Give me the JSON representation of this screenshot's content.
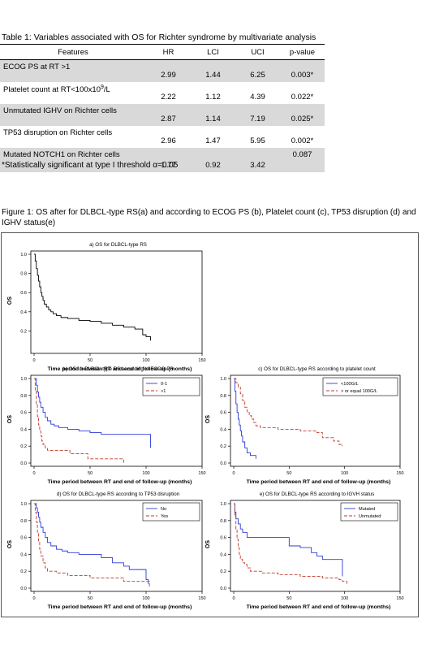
{
  "table": {
    "title": "Table 1: Variables associated with OS for Richter syndrome by multivariate analysis",
    "headers": [
      "Features",
      "HR",
      "LCI",
      "UCI",
      "p-value"
    ],
    "rows": [
      {
        "feature": "ECOG PS at RT >1",
        "hr": "2.99",
        "lci": "1.44",
        "uci": "6.25",
        "p": "0.003*"
      },
      {
        "feature": "Platelet count at RT<100x10",
        "sup": "9",
        "feature_end": "/L",
        "hr": "2.22",
        "lci": "1.12",
        "uci": "4.39",
        "p": "0.022*"
      },
      {
        "feature": "Unmutated IGHV on Richter cells",
        "hr": "2.87",
        "lci": "1.14",
        "uci": "7.19",
        "p": "0.025*"
      },
      {
        "feature": "TP53 disruption on Richter cells",
        "hr": "2.96",
        "lci": "1.47",
        "uci": "5.95",
        "p": "0.002*"
      },
      {
        "feature": "Mutated NOTCH1 on Richter cells",
        "hr": "1.77",
        "lci": "0.92",
        "uci": "3.42",
        "p": "0.087"
      }
    ],
    "footnote": "*Statistically significant at type I threshold α=0.05"
  },
  "figure": {
    "caption": "Figure 1: OS after for DLBCL-type RS(a) and according to ECOG PS (b), Platelet count (c), TP53 disruption (d) and IGHV status(e)"
  },
  "chart_data": [
    {
      "type": "line",
      "title": "a) OS for DLBCL-type RS",
      "xlabel": "Time period between RT and end of follow-up (months)",
      "ylabel": "OS",
      "xlim": [
        0,
        150
      ],
      "ylim": [
        0,
        1.0
      ],
      "xticks": [
        "0",
        "50",
        "100",
        "150"
      ],
      "yticks": [
        "0.2",
        "0.4",
        "0.6",
        "0.8",
        "1.0"
      ],
      "legend": "none",
      "series": [
        {
          "color": "#000000",
          "step": [
            [
              0,
              1.0
            ],
            [
              1,
              0.93
            ],
            [
              2,
              0.85
            ],
            [
              3,
              0.78
            ],
            [
              4,
              0.72
            ],
            [
              5,
              0.66
            ],
            [
              6,
              0.6
            ],
            [
              7,
              0.56
            ],
            [
              8,
              0.52
            ],
            [
              9,
              0.48
            ],
            [
              11,
              0.45
            ],
            [
              13,
              0.42
            ],
            [
              15,
              0.4
            ],
            [
              17,
              0.38
            ],
            [
              20,
              0.36
            ],
            [
              24,
              0.34
            ],
            [
              30,
              0.33
            ],
            [
              40,
              0.31
            ],
            [
              50,
              0.3
            ],
            [
              60,
              0.28
            ],
            [
              70,
              0.26
            ],
            [
              80,
              0.24
            ],
            [
              90,
              0.22
            ],
            [
              97,
              0.16
            ],
            [
              100,
              0.14
            ],
            [
              104,
              0.1
            ]
          ]
        }
      ]
    },
    {
      "type": "line",
      "title": "b) OS for DLBCL-type RS according to ECOG PS",
      "xlabel": "Time period between RT and end of follow-up (months)",
      "ylabel": "OS",
      "xlim": [
        0,
        150
      ],
      "ylim": [
        0,
        1.0
      ],
      "xticks": [
        "0",
        "50",
        "100",
        "150"
      ],
      "yticks": [
        "0.0",
        "0.2",
        "0.4",
        "0.6",
        "0.8",
        "1.0"
      ],
      "legend": "top-right",
      "series": [
        {
          "name": "0-1",
          "color": "#2b3bd6",
          "dashed": false,
          "step": [
            [
              0,
              1.0
            ],
            [
              2,
              0.92
            ],
            [
              3,
              0.84
            ],
            [
              4,
              0.78
            ],
            [
              5,
              0.72
            ],
            [
              6,
              0.66
            ],
            [
              8,
              0.6
            ],
            [
              10,
              0.54
            ],
            [
              12,
              0.5
            ],
            [
              15,
              0.46
            ],
            [
              18,
              0.44
            ],
            [
              22,
              0.42
            ],
            [
              30,
              0.4
            ],
            [
              40,
              0.38
            ],
            [
              50,
              0.36
            ],
            [
              60,
              0.34
            ],
            [
              100,
              0.34
            ],
            [
              104,
              0.18
            ]
          ]
        },
        {
          "name": ">1",
          "color": "#c0392b",
          "dashed": true,
          "step": [
            [
              0,
              1.0
            ],
            [
              1,
              0.85
            ],
            [
              2,
              0.7
            ],
            [
              3,
              0.55
            ],
            [
              4,
              0.45
            ],
            [
              5,
              0.38
            ],
            [
              6,
              0.32
            ],
            [
              7,
              0.26
            ],
            [
              8,
              0.22
            ],
            [
              10,
              0.18
            ],
            [
              12,
              0.15
            ],
            [
              28,
              0.15
            ],
            [
              32,
              0.11
            ],
            [
              45,
              0.11
            ],
            [
              48,
              0.05
            ],
            [
              75,
              0.05
            ],
            [
              80,
              0.0
            ]
          ]
        }
      ]
    },
    {
      "type": "line",
      "title": "c) OS for DLBCL-type RS according to platelet count",
      "xlabel": "Time period between RT and end of follow-up (months)",
      "ylabel": "OS",
      "xlim": [
        0,
        150
      ],
      "ylim": [
        0,
        1.0
      ],
      "xticks": [
        "0",
        "50",
        "100",
        "150"
      ],
      "yticks": [
        "0.0",
        "0.2",
        "0.4",
        "0.6",
        "0.8",
        "1.0"
      ],
      "legend": "top-right",
      "series": [
        {
          "name": "<100G/L",
          "color": "#2b3bd6",
          "dashed": false,
          "step": [
            [
              0,
              1.0
            ],
            [
              1,
              0.85
            ],
            [
              2,
              0.7
            ],
            [
              3,
              0.6
            ],
            [
              4,
              0.52
            ],
            [
              5,
              0.45
            ],
            [
              6,
              0.38
            ],
            [
              7,
              0.32
            ],
            [
              8,
              0.25
            ],
            [
              10,
              0.18
            ],
            [
              12,
              0.12
            ],
            [
              15,
              0.09
            ],
            [
              20,
              0.05
            ]
          ]
        },
        {
          "name": "> or equal 100G/L",
          "color": "#c0392b",
          "dashed": true,
          "step": [
            [
              0,
              1.0
            ],
            [
              2,
              0.95
            ],
            [
              4,
              0.9
            ],
            [
              6,
              0.82
            ],
            [
              8,
              0.74
            ],
            [
              10,
              0.66
            ],
            [
              12,
              0.6
            ],
            [
              14,
              0.56
            ],
            [
              16,
              0.52
            ],
            [
              18,
              0.48
            ],
            [
              20,
              0.44
            ],
            [
              24,
              0.42
            ],
            [
              30,
              0.42
            ],
            [
              40,
              0.4
            ],
            [
              55,
              0.4
            ],
            [
              60,
              0.38
            ],
            [
              75,
              0.36
            ],
            [
              80,
              0.3
            ],
            [
              90,
              0.26
            ],
            [
              95,
              0.22
            ],
            [
              98,
              0.2
            ]
          ]
        }
      ]
    },
    {
      "type": "line",
      "title": "d) OS for DLBCL-type RS according to TP53 disruption",
      "xlabel": "Time period between RT and end of follow-up (months)",
      "ylabel": "OS",
      "xlim": [
        0,
        150
      ],
      "ylim": [
        0,
        1.0
      ],
      "xticks": [
        "0",
        "50",
        "100",
        "150"
      ],
      "yticks": [
        "0.0",
        "0.2",
        "0.4",
        "0.6",
        "0.8",
        "1.0"
      ],
      "legend": "top-right",
      "series": [
        {
          "name": "No",
          "color": "#2b3bd6",
          "dashed": false,
          "step": [
            [
              0,
              1.0
            ],
            [
              2,
              0.95
            ],
            [
              3,
              0.9
            ],
            [
              4,
              0.84
            ],
            [
              5,
              0.78
            ],
            [
              6,
              0.72
            ],
            [
              8,
              0.66
            ],
            [
              10,
              0.6
            ],
            [
              12,
              0.54
            ],
            [
              15,
              0.5
            ],
            [
              20,
              0.46
            ],
            [
              25,
              0.44
            ],
            [
              30,
              0.42
            ],
            [
              40,
              0.4
            ],
            [
              60,
              0.36
            ],
            [
              70,
              0.3
            ],
            [
              80,
              0.26
            ],
            [
              85,
              0.22
            ],
            [
              95,
              0.22
            ],
            [
              100,
              0.1
            ],
            [
              102,
              0.05
            ]
          ]
        },
        {
          "name": "Yes",
          "color": "#c0392b",
          "dashed": true,
          "step": [
            [
              0,
              1.0
            ],
            [
              1,
              0.9
            ],
            [
              2,
              0.78
            ],
            [
              3,
              0.66
            ],
            [
              4,
              0.55
            ],
            [
              5,
              0.46
            ],
            [
              6,
              0.38
            ],
            [
              8,
              0.3
            ],
            [
              10,
              0.24
            ],
            [
              12,
              0.2
            ],
            [
              20,
              0.18
            ],
            [
              30,
              0.15
            ],
            [
              50,
              0.12
            ],
            [
              75,
              0.12
            ],
            [
              80,
              0.08
            ],
            [
              100,
              0.08
            ],
            [
              103,
              0.0
            ]
          ]
        }
      ]
    },
    {
      "type": "line",
      "title": "e) OS for DLBCL-type RS according to IGVH status",
      "xlabel": "Time period between RT and end of follow-up (months)",
      "ylabel": "OS",
      "xlim": [
        0,
        150
      ],
      "ylim": [
        0,
        1.0
      ],
      "xticks": [
        "0",
        "50",
        "100",
        "150"
      ],
      "yticks": [
        "0.0",
        "0.2",
        "0.4",
        "0.6",
        "0.8",
        "1.0"
      ],
      "legend": "top-right",
      "series": [
        {
          "name": "Mutated",
          "color": "#2b3bd6",
          "dashed": false,
          "step": [
            [
              0,
              1.0
            ],
            [
              1,
              0.9
            ],
            [
              2,
              0.82
            ],
            [
              4,
              0.76
            ],
            [
              6,
              0.7
            ],
            [
              8,
              0.66
            ],
            [
              12,
              0.6
            ],
            [
              48,
              0.6
            ],
            [
              50,
              0.5
            ],
            [
              60,
              0.48
            ],
            [
              70,
              0.42
            ],
            [
              75,
              0.38
            ],
            [
              80,
              0.34
            ],
            [
              95,
              0.34
            ],
            [
              98,
              0.14
            ]
          ]
        },
        {
          "name": "Unmutated",
          "color": "#c0392b",
          "dashed": true,
          "step": [
            [
              0,
              1.0
            ],
            [
              1,
              0.85
            ],
            [
              2,
              0.7
            ],
            [
              3,
              0.58
            ],
            [
              4,
              0.48
            ],
            [
              5,
              0.4
            ],
            [
              6,
              0.34
            ],
            [
              8,
              0.3
            ],
            [
              10,
              0.28
            ],
            [
              12,
              0.24
            ],
            [
              15,
              0.2
            ],
            [
              25,
              0.18
            ],
            [
              40,
              0.16
            ],
            [
              60,
              0.14
            ],
            [
              80,
              0.12
            ],
            [
              95,
              0.1
            ],
            [
              98,
              0.08
            ],
            [
              102,
              0.05
            ]
          ]
        }
      ]
    }
  ]
}
